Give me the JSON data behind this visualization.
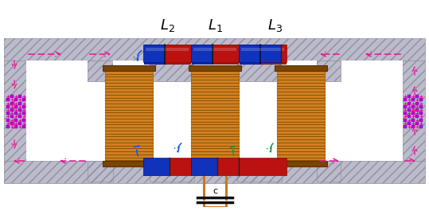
{
  "core_orange": "#C87000",
  "core_orange_light": "#E09030",
  "core_orange_mid": "#D08020",
  "cap_dark": "#8B4500",
  "magnet_blue": "#1133BB",
  "magnet_red": "#BB1111",
  "arrow_pink": "#EE1199",
  "arrow_blue": "#1155EE",
  "arrow_green": "#119944",
  "wire_orange": "#C87820",
  "gray_fill": "#BBBBCC",
  "gray_hatch": "#9090A0",
  "white": "#FFFFFF"
}
